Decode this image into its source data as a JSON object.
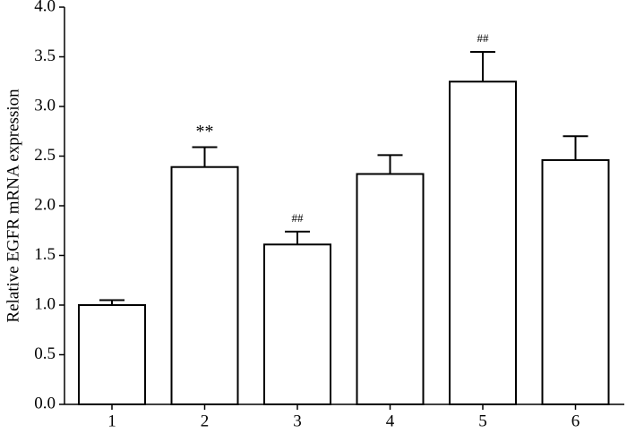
{
  "chart_data": {
    "type": "bar",
    "ylabel": "Relative EGFR mRNA expression",
    "categories": [
      "1",
      "2",
      "3",
      "4",
      "5",
      "6"
    ],
    "values": [
      1.0,
      2.39,
      1.61,
      2.32,
      3.25,
      2.46
    ],
    "errors": [
      0.05,
      0.2,
      0.13,
      0.19,
      0.3,
      0.24
    ],
    "annotations": [
      null,
      "**",
      "##",
      null,
      "##",
      null
    ],
    "color": "#ffffff",
    "ylim": [
      0,
      4
    ],
    "yticks": [
      {
        "value": 0,
        "label": "0.0"
      },
      {
        "value": 0.5,
        "label": "0.5"
      },
      {
        "value": 1,
        "label": "1.0"
      },
      {
        "value": 1.5,
        "label": "1.5"
      },
      {
        "value": 2,
        "label": "2.0"
      },
      {
        "value": 2.5,
        "label": "2.5"
      },
      {
        "value": 3,
        "label": "3.0"
      },
      {
        "value": 3.5,
        "label": "3.5"
      },
      {
        "value": 4,
        "label": "4.0"
      }
    ],
    "grid": false
  }
}
